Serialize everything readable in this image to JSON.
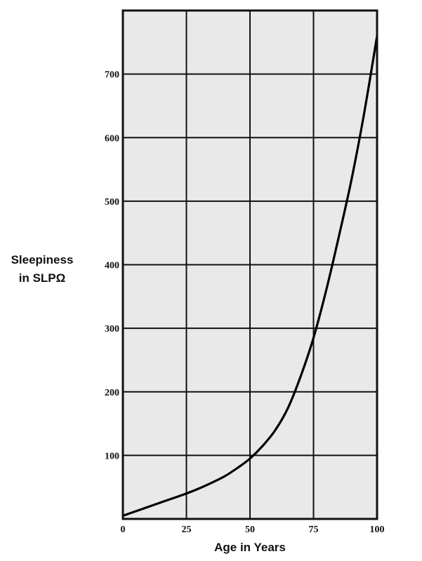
{
  "chart_data": {
    "type": "line",
    "title": "",
    "xlabel": "Age in Years",
    "ylabel_line1": "Sleepiness",
    "ylabel_line2": "in SLPΩ",
    "xlim": [
      0,
      100
    ],
    "ylim": [
      0,
      800
    ],
    "x_ticks": [
      0,
      25,
      50,
      75,
      100
    ],
    "y_ticks": [
      100,
      200,
      300,
      400,
      500,
      600,
      700
    ],
    "grid": true,
    "legend": "none",
    "series": [
      {
        "x": [
          0,
          5,
          10,
          15,
          20,
          25,
          30,
          35,
          40,
          45,
          50,
          55,
          60,
          65,
          70,
          75,
          80,
          85,
          90,
          95,
          100
        ],
        "y": [
          5,
          12,
          19,
          26,
          33,
          40,
          48,
          57,
          67,
          80,
          95,
          115,
          140,
          175,
          225,
          285,
          360,
          445,
          535,
          640,
          760
        ]
      }
    ]
  }
}
